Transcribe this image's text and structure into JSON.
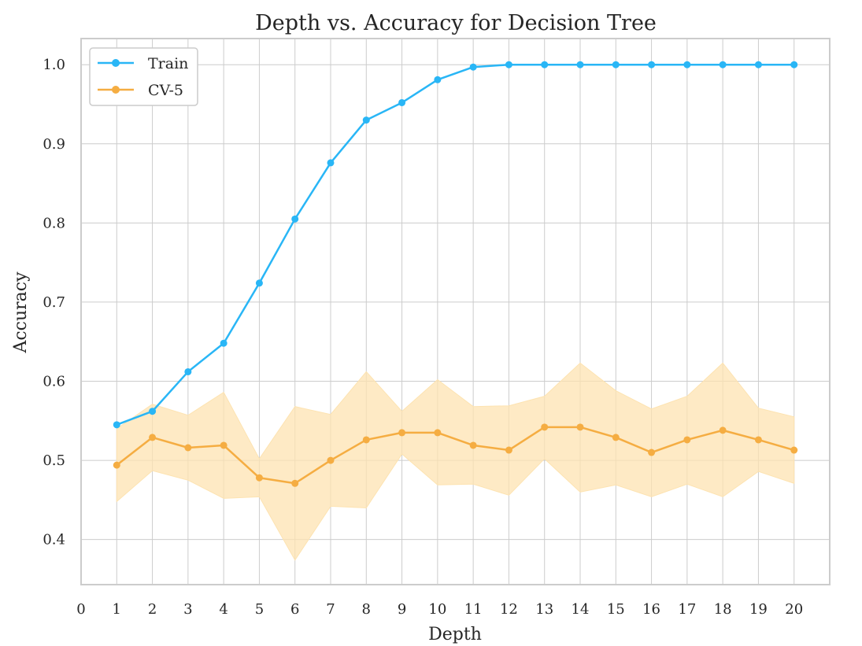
{
  "chart_data": {
    "type": "line",
    "title": "Depth vs. Accuracy for Decision Tree",
    "xlabel": "Depth",
    "ylabel": "Accuracy",
    "xlim": [
      0,
      21
    ],
    "ylim": [
      0.343,
      1.033
    ],
    "x_ticks": [
      0,
      1,
      2,
      3,
      4,
      5,
      6,
      7,
      8,
      9,
      10,
      11,
      12,
      13,
      14,
      15,
      16,
      17,
      18,
      19,
      20
    ],
    "y_ticks": [
      0.4,
      0.5,
      0.6,
      0.7,
      0.8,
      0.9,
      1.0
    ],
    "y_tick_labels": [
      "0.4",
      "0.5",
      "0.6",
      "0.7",
      "0.8",
      "0.9",
      "1.0"
    ],
    "grid": true,
    "legend_position": "top-left",
    "x": [
      1,
      2,
      3,
      4,
      5,
      6,
      7,
      8,
      9,
      10,
      11,
      12,
      13,
      14,
      15,
      16,
      17,
      18,
      19,
      20
    ],
    "series": [
      {
        "name": "Train",
        "color": "#29b6f6",
        "values": [
          0.545,
          0.562,
          0.612,
          0.648,
          0.724,
          0.805,
          0.876,
          0.93,
          0.952,
          0.981,
          0.997,
          1.0,
          1.0,
          1.0,
          1.0,
          1.0,
          1.0,
          1.0,
          1.0,
          1.0
        ]
      },
      {
        "name": "CV-5",
        "color": "#f5ad42",
        "band_color": "#fde3b1",
        "values": [
          0.494,
          0.529,
          0.516,
          0.519,
          0.478,
          0.471,
          0.5,
          0.526,
          0.535,
          0.535,
          0.519,
          0.513,
          0.542,
          0.542,
          0.529,
          0.51,
          0.526,
          0.538,
          0.526,
          0.513
        ],
        "band_upper": [
          0.54,
          0.571,
          0.557,
          0.586,
          0.502,
          0.568,
          0.558,
          0.612,
          0.562,
          0.602,
          0.568,
          0.569,
          0.581,
          0.623,
          0.588,
          0.565,
          0.581,
          0.623,
          0.566,
          0.555
        ],
        "band_lower": [
          0.448,
          0.487,
          0.475,
          0.452,
          0.454,
          0.374,
          0.442,
          0.44,
          0.508,
          0.469,
          0.47,
          0.456,
          0.502,
          0.46,
          0.469,
          0.454,
          0.47,
          0.454,
          0.486,
          0.471
        ]
      }
    ]
  }
}
